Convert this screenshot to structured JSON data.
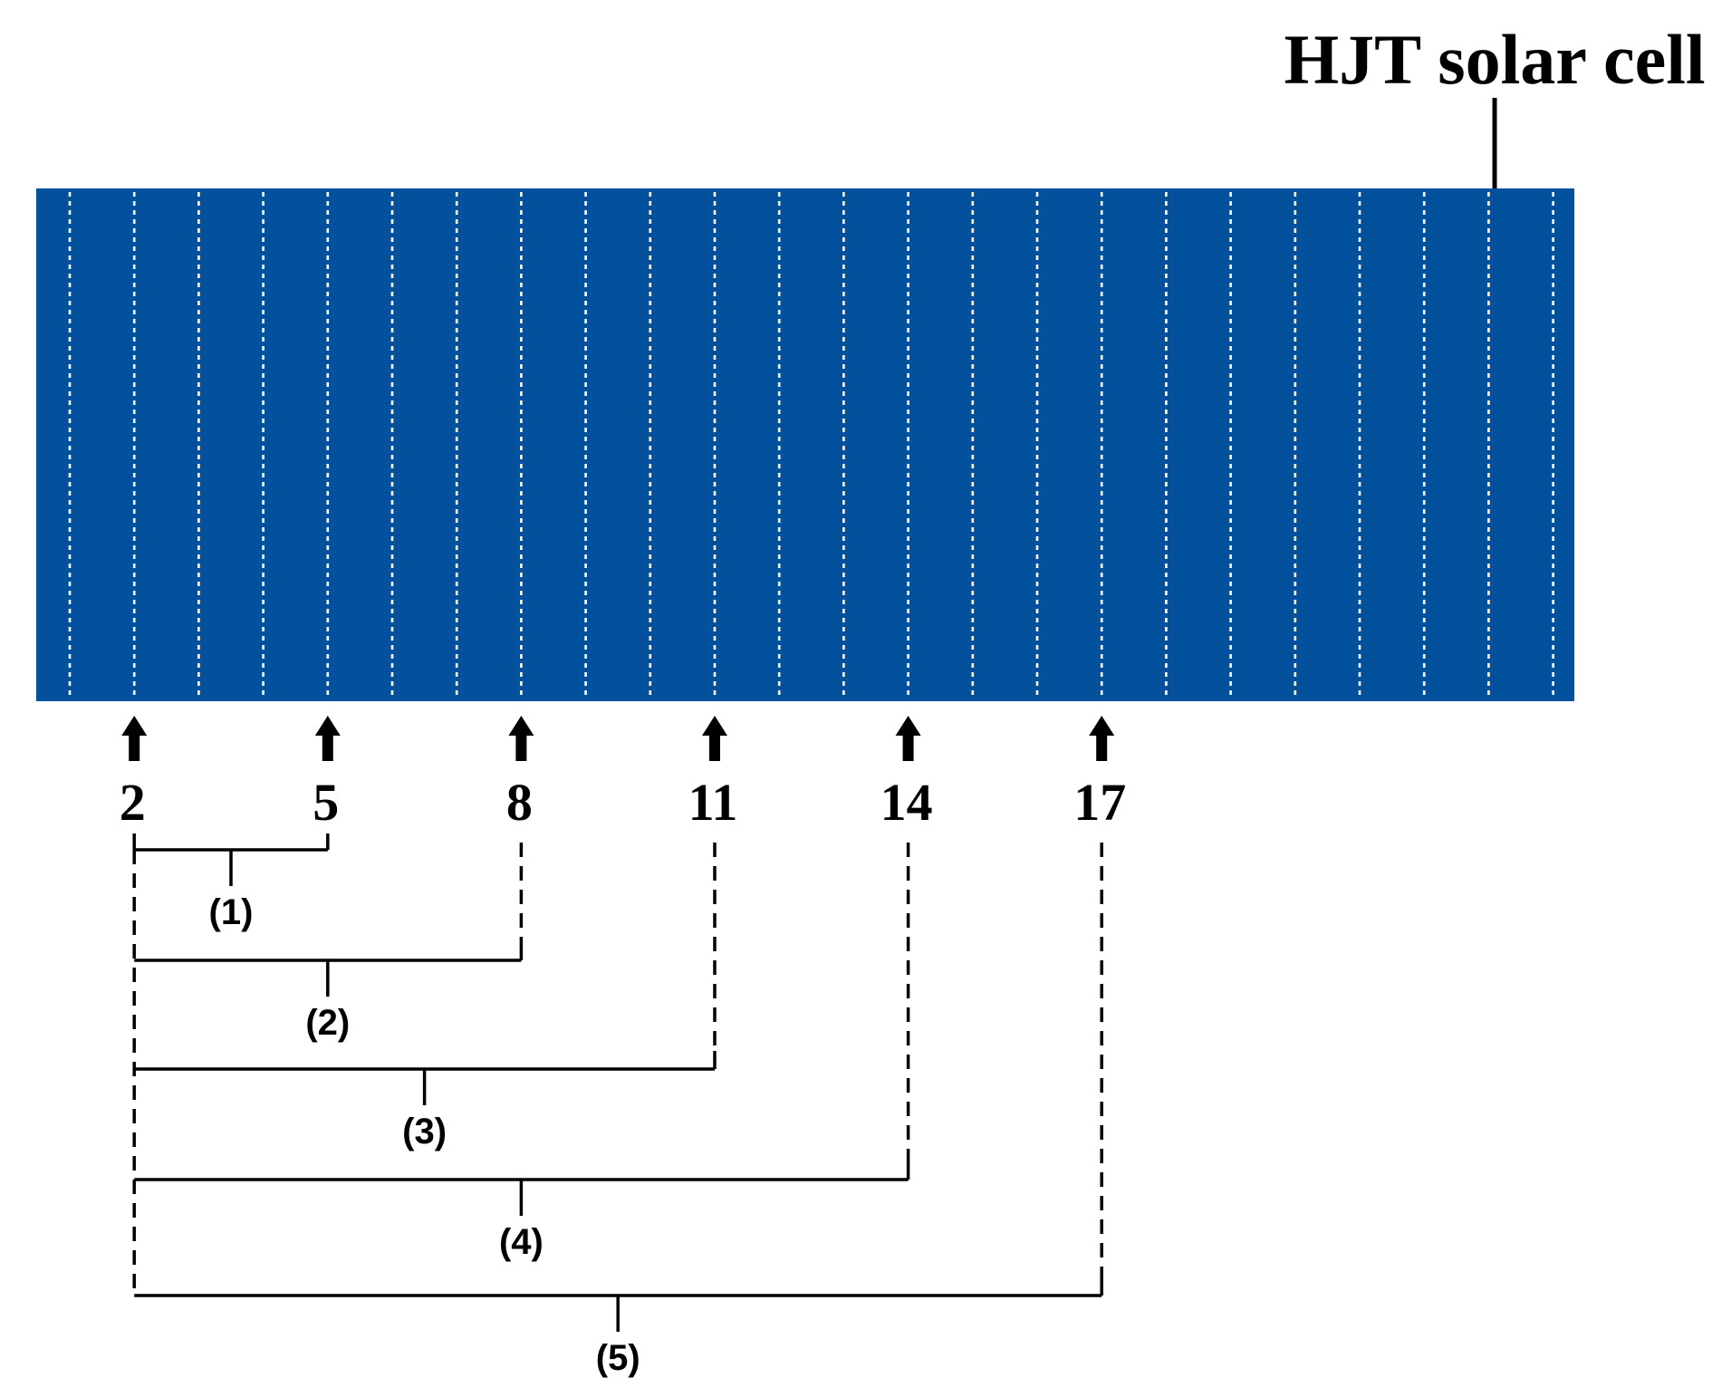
{
  "title": "HJT solar cell",
  "colors": {
    "cell": "#03519C",
    "finger": "#ffffff",
    "line": "#000000"
  },
  "cell": {
    "finger_count": 24
  },
  "marked_fingers": [
    {
      "index": 2,
      "label": "2"
    },
    {
      "index": 5,
      "label": "5"
    },
    {
      "index": 8,
      "label": "8"
    },
    {
      "index": 11,
      "label": "11"
    },
    {
      "index": 14,
      "label": "14"
    },
    {
      "index": 17,
      "label": "17"
    }
  ],
  "groups": [
    {
      "label": "(1)",
      "from": 2,
      "to": 5
    },
    {
      "label": "(2)",
      "from": 2,
      "to": 8
    },
    {
      "label": "(3)",
      "from": 2,
      "to": 11
    },
    {
      "label": "(4)",
      "from": 2,
      "to": 14
    },
    {
      "label": "(5)",
      "from": 2,
      "to": 17
    }
  ]
}
